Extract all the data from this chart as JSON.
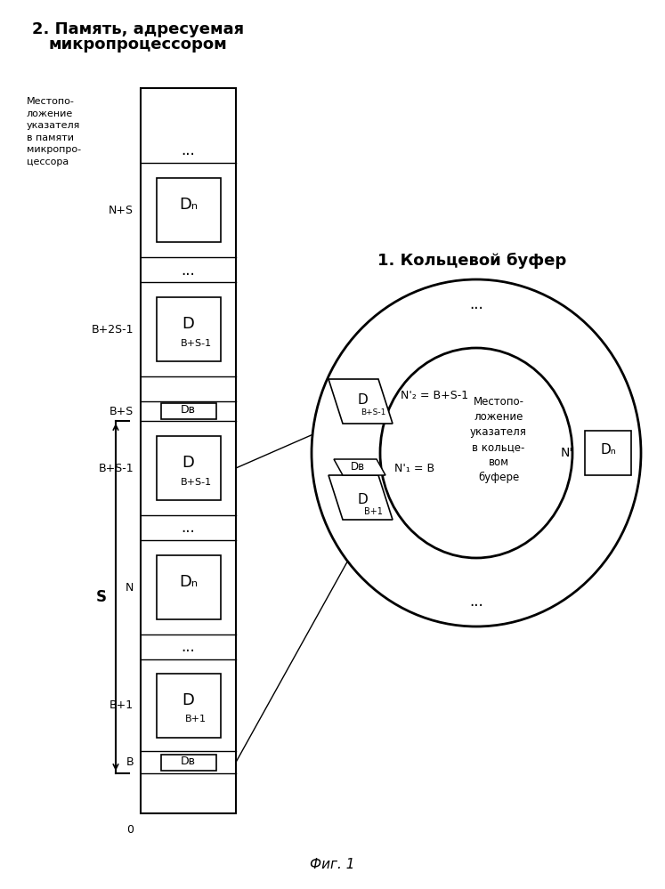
{
  "title_left_line1": "2. Память, адресуемая",
  "title_left_line2": "микропроцессором",
  "title_right": "1. Кольцевой буфер",
  "fig_caption": "Фиг. 1",
  "left_pointer_label": "Местопо-\nложение\nуказателя\nв памяти\nмикропро-\nцессора",
  "right_pointer_label": "Местопо-\nложение\nуказателя\nв кольце-\nвом\nбуфере",
  "s_label": "S",
  "ring_label1": "N'₂ = B+S-1",
  "ring_label2": "N'₁ = B",
  "ring_pointer": "N'",
  "background_color": "#ffffff",
  "text_color": "#000000"
}
